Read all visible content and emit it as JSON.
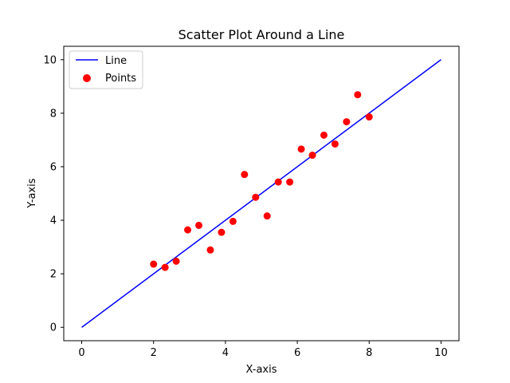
{
  "chart_data": {
    "type": "scatter",
    "title": "Scatter Plot Around a Line",
    "xlabel": "X-axis",
    "ylabel": "Y-axis",
    "xlim": [
      -0.5,
      10.5
    ],
    "ylim": [
      -0.5,
      10.5
    ],
    "xticks": [
      0,
      2,
      4,
      6,
      8,
      10
    ],
    "yticks": [
      0,
      2,
      4,
      6,
      8,
      10
    ],
    "grid": false,
    "legend_position": "top-left",
    "series": [
      {
        "name": "Line",
        "type": "line",
        "color": "#0000ff",
        "x": [
          0,
          10
        ],
        "y": [
          0,
          10
        ]
      },
      {
        "name": "Points",
        "type": "scatter",
        "color": "#ff0000",
        "x": [
          2.0,
          2.32,
          2.63,
          2.95,
          3.26,
          3.58,
          3.89,
          4.21,
          4.53,
          4.84,
          5.16,
          5.47,
          5.79,
          6.11,
          6.42,
          6.74,
          7.05,
          7.37,
          7.68,
          8.0
        ],
        "y": [
          2.36,
          2.24,
          2.47,
          3.64,
          3.81,
          2.89,
          3.55,
          3.96,
          5.71,
          4.86,
          4.16,
          5.43,
          5.43,
          6.66,
          6.43,
          7.18,
          6.85,
          7.68,
          8.69,
          7.86
        ]
      }
    ]
  }
}
